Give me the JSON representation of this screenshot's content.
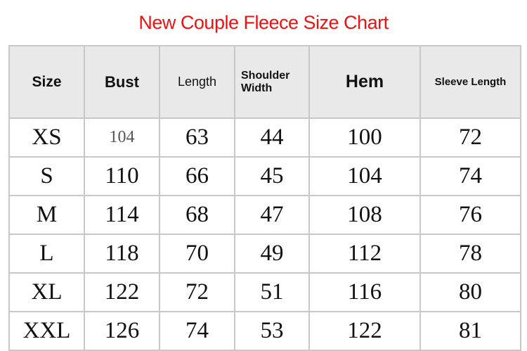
{
  "title": "New Couple Fleece Size Chart",
  "colors": {
    "title": "#ee1111",
    "header_bg": "#e9e9e9",
    "grid": "#c8c8c8"
  },
  "headers": [
    "Size",
    "Bust",
    "Length",
    "Shoulder Width",
    "Hem",
    "Sleeve Length"
  ],
  "rows": [
    [
      "XS",
      "104",
      "63",
      "44",
      "100",
      "72"
    ],
    [
      "S",
      "110",
      "66",
      "45",
      "104",
      "74"
    ],
    [
      "M",
      "114",
      "68",
      "47",
      "108",
      "76"
    ],
    [
      "L",
      "118",
      "70",
      "49",
      "112",
      "78"
    ],
    [
      "XL",
      "122",
      "72",
      "51",
      "116",
      "80"
    ],
    [
      "XXL",
      "126",
      "74",
      "53",
      "122",
      "81"
    ]
  ]
}
